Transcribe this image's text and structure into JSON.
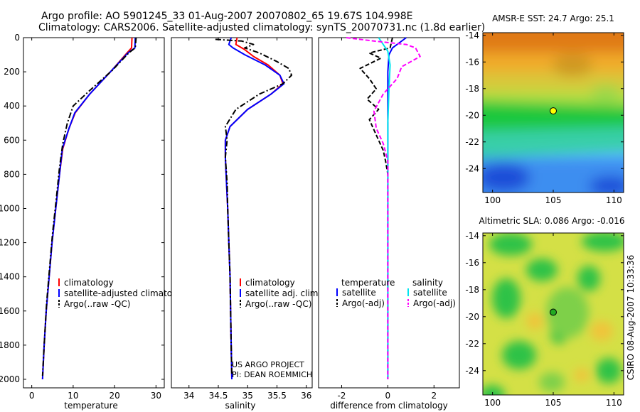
{
  "header": {
    "line1": "Argo profile: AO 5901245_33 01-Aug-2007 20070802_65 19.67S 104.998E",
    "line2": "Climatology: CARS2006. Satellite-adjusted climatology: synTS_20070731.nc (1.8d earlier)"
  },
  "side_label": "CSIRO 08-Aug-2007 10:33:36",
  "chart_data": [
    {
      "type": "line",
      "id": "temperature",
      "xlabel": "temperature",
      "ylabel": "",
      "xlim": [
        -2,
        32
      ],
      "ylim": [
        2050,
        0
      ],
      "xticks": [
        0,
        10,
        20,
        30
      ],
      "yticks": [
        0,
        200,
        400,
        600,
        800,
        1000,
        1200,
        1400,
        1600,
        1800,
        2000
      ],
      "legend_title": "",
      "legend": [
        "climatology",
        "satellite-adjusted climatology",
        "Argo(..raw -QC)"
      ],
      "series": [
        {
          "name": "climatology",
          "color": "#ff0000",
          "dash": "",
          "points": [
            [
              24.2,
              0
            ],
            [
              24.1,
              60
            ],
            [
              23,
              90
            ],
            [
              19,
              200
            ],
            [
              14,
              330
            ],
            [
              10.5,
              440
            ],
            [
              9,
              530
            ],
            [
              7.5,
              650
            ],
            [
              6.7,
              800
            ],
            [
              5.8,
              1000
            ],
            [
              4.9,
              1200
            ],
            [
              4.2,
              1400
            ],
            [
              3.5,
              1600
            ],
            [
              3,
              1800
            ],
            [
              2.6,
              2000
            ]
          ]
        },
        {
          "name": "satellite-adjusted climatology",
          "color": "#0000ff",
          "dash": "",
          "points": [
            [
              25,
              0
            ],
            [
              24.9,
              60
            ],
            [
              23.2,
              90
            ],
            [
              19,
              200
            ],
            [
              14,
              330
            ],
            [
              10.4,
              440
            ],
            [
              9,
              530
            ],
            [
              7.4,
              650
            ],
            [
              6.7,
              800
            ],
            [
              5.8,
              1000
            ],
            [
              4.9,
              1200
            ],
            [
              4.2,
              1400
            ],
            [
              3.5,
              1600
            ],
            [
              3,
              1800
            ],
            [
              2.6,
              2000
            ]
          ]
        },
        {
          "name": "Argo(..raw -QC)",
          "color": "#000000",
          "dash": "8,3,2,3",
          "points": [
            [
              25.2,
              0
            ],
            [
              25,
              60
            ],
            [
              23.4,
              90
            ],
            [
              19.5,
              190
            ],
            [
              13.5,
              320
            ],
            [
              10,
              400
            ],
            [
              8.6,
              500
            ],
            [
              7.5,
              620
            ],
            [
              6.7,
              760
            ],
            [
              5.9,
              950
            ],
            [
              5,
              1150
            ],
            [
              4.3,
              1350
            ],
            [
              3.6,
              1550
            ],
            [
              3,
              1800
            ],
            [
              2.6,
              1980
            ]
          ]
        }
      ]
    },
    {
      "type": "line",
      "id": "salinity",
      "xlabel": "salinity",
      "xlim": [
        33.7,
        36.1
      ],
      "ylim": [
        2050,
        0
      ],
      "xticks": [
        34,
        34.5,
        35,
        35.5,
        36
      ],
      "yticks": [],
      "legend": [
        "climatology",
        "satellite adj. clim.",
        "Argo(..raw -QC)"
      ],
      "annotation": [
        "US ARGO PROJECT",
        "PI: DEAN ROEMMICH"
      ],
      "series": [
        {
          "name": "climatology",
          "color": "#ff0000",
          "dash": "",
          "points": [
            [
              34.82,
              0
            ],
            [
              34.8,
              40
            ],
            [
              34.95,
              70
            ],
            [
              35.1,
              110
            ],
            [
              35.35,
              160
            ],
            [
              35.55,
              220
            ],
            [
              35.6,
              270
            ],
            [
              35.4,
              330
            ],
            [
              35.0,
              420
            ],
            [
              34.7,
              520
            ],
            [
              34.62,
              600
            ],
            [
              34.62,
              700
            ],
            [
              34.64,
              850
            ],
            [
              34.66,
              1000
            ],
            [
              34.68,
              1200
            ],
            [
              34.7,
              1400
            ],
            [
              34.71,
              1600
            ],
            [
              34.72,
              1800
            ],
            [
              34.73,
              2000
            ]
          ]
        },
        {
          "name": "satellite adj. clim.",
          "color": "#0000ff",
          "dash": "",
          "points": [
            [
              34.72,
              0
            ],
            [
              34.68,
              40
            ],
            [
              34.75,
              60
            ],
            [
              34.95,
              100
            ],
            [
              35.3,
              160
            ],
            [
              35.55,
              220
            ],
            [
              35.62,
              270
            ],
            [
              35.4,
              330
            ],
            [
              35.0,
              420
            ],
            [
              34.7,
              520
            ],
            [
              34.62,
              600
            ],
            [
              34.62,
              700
            ],
            [
              34.64,
              850
            ],
            [
              34.66,
              1000
            ],
            [
              34.68,
              1200
            ],
            [
              34.7,
              1400
            ],
            [
              34.71,
              1600
            ],
            [
              34.72,
              1800
            ],
            [
              34.73,
              2000
            ]
          ]
        },
        {
          "name": "Argo(..raw -QC)",
          "color": "#000000",
          "dash": "8,3,2,3",
          "points": [
            [
              34.45,
              10
            ],
            [
              34.9,
              20
            ],
            [
              35.1,
              40
            ],
            [
              34.95,
              60
            ],
            [
              35.2,
              90
            ],
            [
              35.5,
              140
            ],
            [
              35.7,
              180
            ],
            [
              35.75,
              220
            ],
            [
              35.6,
              270
            ],
            [
              35.2,
              330
            ],
            [
              34.8,
              420
            ],
            [
              34.62,
              520
            ],
            [
              34.65,
              600
            ],
            [
              34.62,
              700
            ],
            [
              34.65,
              850
            ],
            [
              34.66,
              1000
            ],
            [
              34.68,
              1200
            ],
            [
              34.7,
              1400
            ],
            [
              34.71,
              1600
            ],
            [
              34.72,
              1800
            ],
            [
              34.73,
              1980
            ]
          ]
        }
      ]
    },
    {
      "type": "line",
      "id": "difference",
      "xlabel": "difference from climatology",
      "xlim": [
        -3,
        3.1
      ],
      "ylim": [
        2050,
        0
      ],
      "xticks": [
        -2,
        0,
        2
      ],
      "yticks": [],
      "legend_headers": [
        "temperature",
        "salinity"
      ],
      "legend": [
        "satellite",
        "Argo(-adj)",
        "satellite",
        "Argo(-adj)"
      ],
      "series": [
        {
          "name": "temperature satellite",
          "color": "#0000ff",
          "dash": "",
          "points": [
            [
              0.8,
              0
            ],
            [
              0.2,
              60
            ],
            [
              0.05,
              100
            ],
            [
              0,
              200
            ],
            [
              0,
              400
            ],
            [
              0,
              800
            ],
            [
              0,
              1200
            ],
            [
              0,
              1600
            ],
            [
              0,
              2000
            ]
          ]
        },
        {
          "name": "temperature Argo(-adj)",
          "color": "#000000",
          "dash": "6,3",
          "points": [
            [
              0.2,
              0
            ],
            [
              0.1,
              60
            ],
            [
              -0.8,
              90
            ],
            [
              -0.3,
              120
            ],
            [
              -1.2,
              180
            ],
            [
              -0.8,
              240
            ],
            [
              -0.5,
              300
            ],
            [
              -0.9,
              360
            ],
            [
              -0.4,
              420
            ],
            [
              -0.8,
              480
            ],
            [
              -0.6,
              540
            ],
            [
              -0.4,
              600
            ],
            [
              -0.2,
              660
            ],
            [
              -0.1,
              720
            ],
            [
              0,
              800
            ],
            [
              0,
              1000
            ],
            [
              0,
              1500
            ],
            [
              0,
              2000
            ]
          ]
        },
        {
          "name": "salinity satellite",
          "color": "#00e5ee",
          "dash": "",
          "points": [
            [
              -0.4,
              0
            ],
            [
              -0.2,
              40
            ],
            [
              0,
              80
            ],
            [
              0.1,
              160
            ],
            [
              0.05,
              300
            ],
            [
              0,
              500
            ],
            [
              0,
              800
            ],
            [
              0,
              1200
            ],
            [
              0,
              1600
            ],
            [
              0,
              2000
            ]
          ]
        },
        {
          "name": "salinity Argo(-adj)",
          "color": "#ff00ff",
          "dash": "6,3",
          "points": [
            [
              -1.8,
              0
            ],
            [
              -0.6,
              20
            ],
            [
              0.8,
              40
            ],
            [
              1.2,
              60
            ],
            [
              1.4,
              110
            ],
            [
              0.6,
              170
            ],
            [
              0.4,
              240
            ],
            [
              -0.2,
              330
            ],
            [
              -0.6,
              430
            ],
            [
              -0.5,
              530
            ],
            [
              -0.2,
              620
            ],
            [
              0,
              720
            ],
            [
              0,
              850
            ],
            [
              0,
              1100
            ],
            [
              0,
              1500
            ],
            [
              0,
              2000
            ]
          ]
        }
      ]
    },
    {
      "type": "heatmap",
      "id": "sst",
      "title": "AMSR-E SST: 24.7  Argo: 25.1",
      "xlim": [
        99.2,
        110.8
      ],
      "ylim": [
        -25.8,
        -13.8
      ],
      "xticks": [
        100,
        105,
        110
      ],
      "yticks": [
        -14,
        -16,
        -18,
        -20,
        -22,
        -24
      ],
      "marker": [
        105,
        -19.67
      ]
    },
    {
      "type": "heatmap",
      "id": "sla",
      "title": "Altimetric SLA: 0.086  Argo: -0.016",
      "xlim": [
        99.2,
        110.8
      ],
      "ylim": [
        -25.8,
        -13.8
      ],
      "xticks": [
        100,
        105,
        110
      ],
      "yticks": [
        -14,
        -16,
        -18,
        -20,
        -22,
        -24
      ],
      "marker": [
        105,
        -19.67
      ]
    }
  ]
}
